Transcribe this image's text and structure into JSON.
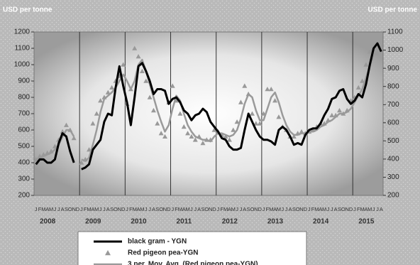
{
  "chart_data": {
    "type": "line",
    "y_label": "USD per tonne",
    "y2_label": "USD per tonne",
    "categories": [
      "J",
      "F",
      "M",
      "A",
      "M",
      "J",
      "J",
      "A",
      "S",
      "O",
      "N",
      "D",
      "J",
      "F",
      "M",
      "A",
      "M",
      "J",
      "J",
      "A",
      "S",
      "O",
      "N",
      "D",
      "J",
      "F",
      "M",
      "A",
      "M",
      "J",
      "J",
      "A",
      "S",
      "O",
      "N",
      "D",
      "J",
      "F",
      "M",
      "A",
      "M",
      "J",
      "J",
      "A",
      "S",
      "O",
      "N",
      "D",
      "J",
      "F",
      "M",
      "A",
      "M",
      "J",
      "J",
      "A",
      "S",
      "O",
      "N",
      "D",
      "J",
      "F",
      "M",
      "A",
      "M",
      "J",
      "J",
      "A",
      "S",
      "O",
      "N",
      "D",
      "J",
      "F",
      "M",
      "A",
      "M",
      "J",
      "J",
      "A",
      "S",
      "O",
      "N",
      "D",
      "J",
      "F",
      "M",
      "A",
      "M",
      "J",
      "J",
      "A"
    ],
    "x_groups": [
      "2008",
      "2009",
      "2010",
      "2011",
      "2012",
      "2013",
      "2014",
      "2015"
    ],
    "ylim": [
      200,
      1200
    ],
    "yticks": [
      200,
      300,
      400,
      500,
      600,
      700,
      800,
      900,
      1000,
      1100,
      1200
    ],
    "y2lim": [
      200,
      1100
    ],
    "y2ticks": [
      200,
      300,
      400,
      500,
      600,
      700,
      800,
      900,
      1000,
      1100
    ],
    "series": [
      {
        "name": "black gram - YGN",
        "color": "#000000",
        "style": "line",
        "width": 3,
        "values": [
          390,
          420,
          420,
          400,
          400,
          420,
          520,
          580,
          560,
          470,
          400,
          null,
          360,
          370,
          390,
          480,
          510,
          540,
          650,
          700,
          690,
          860,
          990,
          870,
          770,
          630,
          800,
          990,
          1010,
          960,
          900,
          820,
          850,
          850,
          840,
          760,
          790,
          800,
          770,
          720,
          700,
          660,
          690,
          700,
          730,
          710,
          650,
          620,
          590,
          550,
          540,
          500,
          480,
          480,
          490,
          600,
          700,
          650,
          600,
          560,
          540,
          540,
          530,
          510,
          600,
          620,
          600,
          560,
          510,
          520,
          510,
          570,
          600,
          610,
          610,
          640,
          690,
          730,
          790,
          800,
          840,
          850,
          790,
          760,
          780,
          820,
          800,
          880,
          1000,
          1100,
          1130,
          1080
        ]
      },
      {
        "name": "Red pigeon pea-YGN",
        "color": "#999999",
        "style": "triangle",
        "values": [
          420,
          440,
          450,
          460,
          470,
          500,
          540,
          590,
          630,
          600,
          550,
          null,
          400,
          420,
          480,
          640,
          700,
          780,
          800,
          830,
          860,
          900,
          930,
          1000,
          760,
          850,
          1100,
          1050,
          960,
          900,
          800,
          720,
          640,
          580,
          560,
          770,
          870,
          780,
          700,
          620,
          580,
          560,
          540,
          560,
          520,
          540,
          540,
          600,
          590,
          570,
          560,
          540,
          600,
          650,
          770,
          870,
          820,
          700,
          640,
          640,
          700,
          850,
          850,
          780,
          680,
          620,
          600,
          560,
          560,
          580,
          590,
          580,
          590,
          600,
          620,
          640,
          640,
          660,
          690,
          690,
          720,
          700,
          720,
          780,
          800,
          860,
          900,
          1000,
          1080,
          1090,
          1070,
          null
        ]
      },
      {
        "name": "3 per. Mov. Avg. (Red pigeon pea-YGN)",
        "color": "#9a9a9a",
        "style": "line",
        "width": 2.5,
        "values": [
          420,
          430,
          440,
          450,
          460,
          480,
          510,
          560,
          600,
          600,
          560,
          null,
          420,
          410,
          430,
          510,
          600,
          710,
          790,
          810,
          830,
          860,
          900,
          940,
          900,
          850,
          900,
          1000,
          1030,
          960,
          880,
          800,
          720,
          650,
          590,
          630,
          730,
          810,
          780,
          700,
          630,
          590,
          560,
          550,
          540,
          540,
          530,
          560,
          580,
          580,
          570,
          560,
          570,
          600,
          670,
          760,
          820,
          800,
          720,
          660,
          660,
          730,
          800,
          830,
          770,
          690,
          630,
          590,
          570,
          570,
          580,
          580,
          590,
          590,
          600,
          620,
          630,
          650,
          660,
          680,
          700,
          700,
          710,
          730,
          770,
          810,
          850,
          920,
          990,
          1060,
          1080,
          1070
        ]
      }
    ]
  }
}
